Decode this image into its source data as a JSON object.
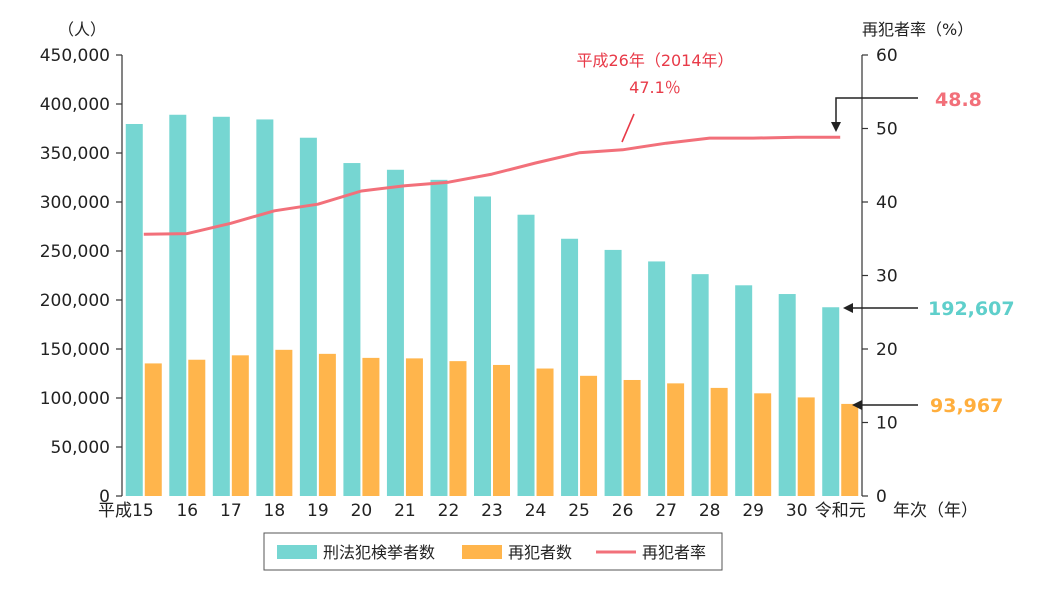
{
  "chart_data": {
    "type": "bar",
    "categories": [
      "平成15",
      "16",
      "17",
      "18",
      "19",
      "20",
      "21",
      "22",
      "23",
      "24",
      "25",
      "26",
      "27",
      "28",
      "29",
      "30",
      "令和元"
    ],
    "series": [
      {
        "name": "刑法犯検挙者数",
        "type": "bar",
        "axis": "left",
        "color": "#76d6d2",
        "values": [
          379602,
          389027,
          386955,
          384250,
          365577,
          339752,
          332888,
          322620,
          305631,
          287021,
          262486,
          251115,
          239355,
          226376,
          215003,
          206094,
          192607
        ]
      },
      {
        "name": "再犯者数",
        "type": "bar",
        "axis": "left",
        "color": "#ffb54c",
        "values": [
          135295,
          139047,
          143545,
          149164,
          145052,
          140939,
          140431,
          137614,
          133724,
          130077,
          122638,
          118381,
          114944,
          110306,
          104774,
          100601,
          93967
        ]
      },
      {
        "name": "再犯者率",
        "type": "line",
        "axis": "right",
        "color": "#f2707a",
        "values": [
          35.6,
          35.7,
          37.1,
          38.8,
          39.7,
          41.5,
          42.2,
          42.7,
          43.8,
          45.3,
          46.7,
          47.1,
          48.0,
          48.7,
          48.7,
          48.8,
          48.8
        ]
      }
    ],
    "y_left": {
      "unit_label": "（人）",
      "min": 0,
      "max": 450000,
      "ticks": [
        "0",
        "50,000",
        "100,000",
        "150,000",
        "200,000",
        "250,000",
        "300,000",
        "350,000",
        "400,000",
        "450,000"
      ]
    },
    "y_right": {
      "unit_label": "再犯者率（%）",
      "min": 0,
      "max": 60,
      "ticks": [
        "0",
        "10",
        "20",
        "30",
        "40",
        "50",
        "60"
      ]
    },
    "x_unit_label": "年次（年）",
    "annotations": {
      "peak_line1": "平成26年（2014年）",
      "peak_line2": "47.1％",
      "rate_callout": "48.8",
      "arrests_callout": "192,607",
      "reoffenders_callout": "93,967"
    },
    "legend": {
      "position": "bottom",
      "items": [
        "刑法犯検挙者数",
        "再犯者数",
        "再犯者率"
      ]
    },
    "grid": false
  }
}
